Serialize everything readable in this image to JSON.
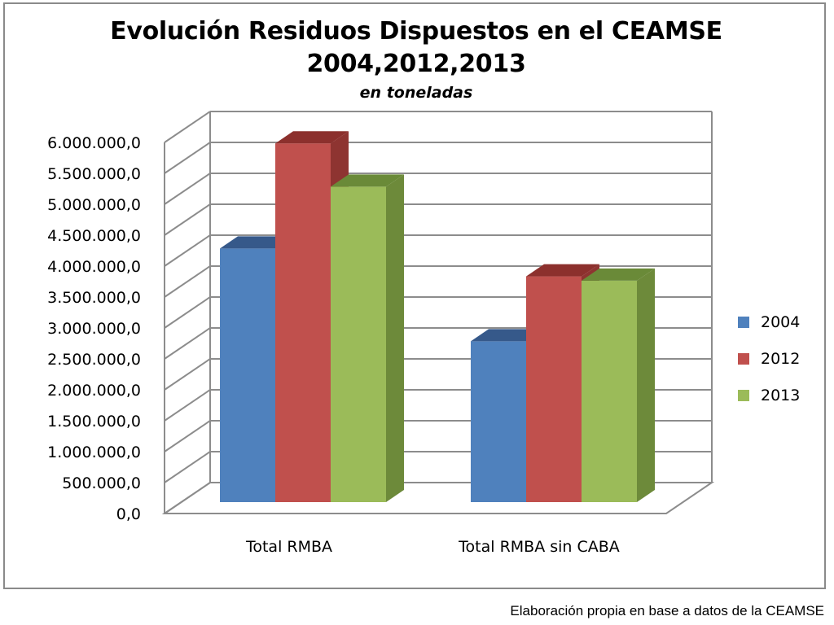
{
  "chart_data": {
    "type": "bar",
    "title_line1": "Evolución Residuos Dispuestos en el CEAMSE",
    "title_line2": "2004,2012,2013",
    "subtitle": "en toneladas",
    "categories": [
      "Total RMBA",
      "Total RMBA  sin CABA"
    ],
    "series": [
      {
        "name": "2004",
        "values": [
          4100000,
          2600000
        ],
        "color": "#4F81BD",
        "side": "#3A6394",
        "top": "#36598A"
      },
      {
        "name": "2012",
        "values": [
          5800000,
          3650000
        ],
        "color": "#C0504D",
        "side": "#8E3431",
        "top": "#8C302D"
      },
      {
        "name": "2013",
        "values": [
          5100000,
          3580000
        ],
        "color": "#9BBB59",
        "side": "#6D8A3A",
        "top": "#6A8A38"
      }
    ],
    "y_ticks": [
      "0,0",
      "500.000,0",
      "1.000.000,0",
      "1.500.000,0",
      "2.000.000,0",
      "2.500.000,0",
      "3.000.000,0",
      "3.500.000,0",
      "4.000.000,0",
      "4.500.000,0",
      "5.000.000,0",
      "5.500.000,0",
      "6.000.000,0"
    ],
    "ylim": [
      0,
      6000000
    ],
    "grid": true,
    "legend": "right"
  },
  "footnote": "Elaboración propia en base a datos de la CEAMSE"
}
